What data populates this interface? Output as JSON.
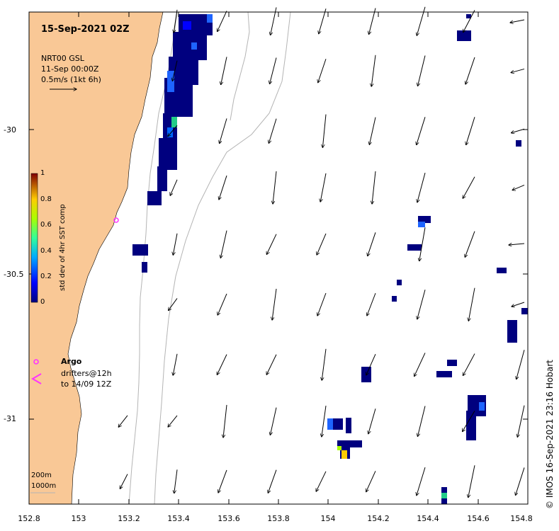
{
  "title": "15-Sep-2021 02Z",
  "product": {
    "line1": "NRT00 GSL",
    "line2": "11-Sep 00:00Z",
    "scale": "0.5m/s (1kt 6h)"
  },
  "colorbar": {
    "label": "std dev of 4hr SST comp",
    "ticks": [
      "1",
      "0.8",
      "0.6",
      "0.4",
      "0.2",
      "0"
    ]
  },
  "legend": {
    "argo": "Argo",
    "drifters_line1": "drifters@12h",
    "drifters_line2": "to 14/09 12Z"
  },
  "contours": {
    "shallow": "200m",
    "deep": "1000m"
  },
  "credit": "© IMOS 16-Sep-2021 23:16 Hobart",
  "colors": {
    "land": "#f9c896",
    "ocean": "#ffffff",
    "contour": "#b4b4b4",
    "argo": "#ff33ff",
    "sst_low": "#000080",
    "sst_mid": "#1e64ff"
  },
  "axes": {
    "x_ticks": [
      "152.8",
      "153",
      "153.2",
      "153.4",
      "153.6",
      "153.8",
      "154",
      "154.2",
      "154.4",
      "154.6",
      "154.8"
    ],
    "y_ticks": [
      "-30",
      "-30.5",
      "-31"
    ]
  },
  "chart_data": {
    "type": "map",
    "xlim": [
      152.8,
      154.8
    ],
    "ylim": [
      -31.25,
      -29.6
    ],
    "grid": false
  }
}
